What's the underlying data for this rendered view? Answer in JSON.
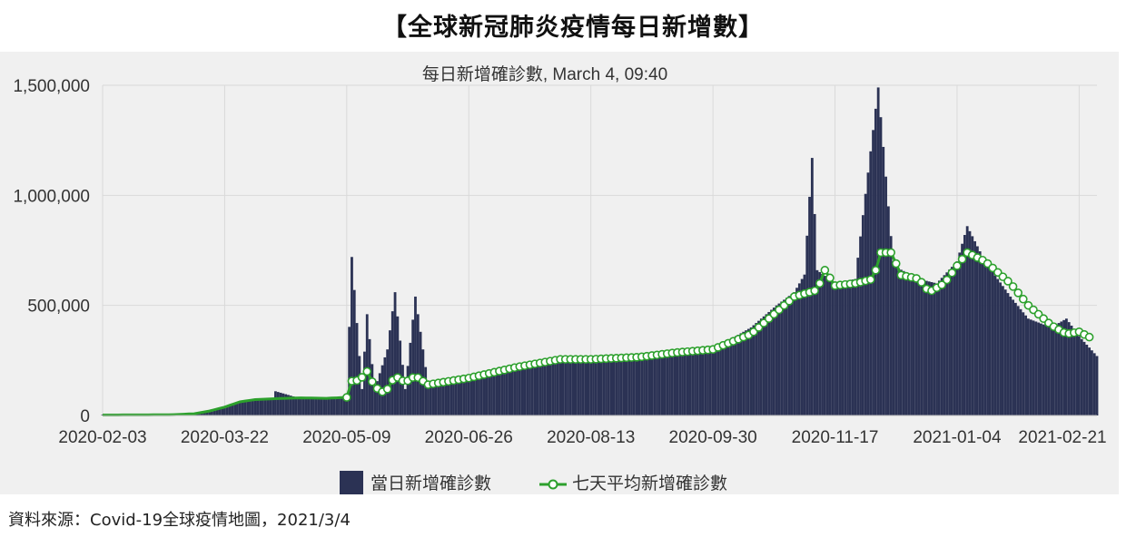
{
  "headline": "【全球新冠肺炎疫情每日新增數】",
  "source": "資料來源：Covid-19全球疫情地圖，2021/3/4",
  "chart_data": {
    "type": "bar",
    "title": "每日新增確診數, March 4, 09:40",
    "xlabel": "",
    "ylabel": "",
    "ylim": [
      0,
      1500000
    ],
    "yticks": [
      0,
      500000,
      1000000,
      1500000
    ],
    "ytick_labels": [
      "0",
      "500,000",
      "1,000,000",
      "1,500,000"
    ],
    "xticks": [
      "2020-02-03",
      "2020-03-22",
      "2020-05-09",
      "2020-06-26",
      "2020-08-13",
      "2020-09-30",
      "2020-11-17",
      "2021-01-04",
      "2021-02-21"
    ],
    "x_start": "2020-02-03",
    "x_end": "2021-02-28",
    "grid": true,
    "legend_position": "bottom",
    "colors": {
      "bar": "#2b3254",
      "line": "#2ca02c",
      "marker_fill": "#ffffff",
      "panel_bg": "#f0f0f0",
      "grid": "#d9d9d9"
    },
    "series": [
      {
        "name": "當日新增確診數",
        "type": "bar",
        "points": [
          [
            "2020-02-03",
            3000
          ],
          [
            "2020-03-01",
            2000
          ],
          [
            "2020-03-10",
            5000
          ],
          [
            "2020-03-16",
            15000
          ],
          [
            "2020-03-22",
            35000
          ],
          [
            "2020-03-28",
            60000
          ],
          [
            "2020-04-03",
            75000
          ],
          [
            "2020-04-10",
            80000
          ],
          [
            "2020-04-11",
            110000
          ],
          [
            "2020-04-20",
            80000
          ],
          [
            "2020-05-01",
            82000
          ],
          [
            "2020-05-09",
            85000
          ],
          [
            "2020-05-11",
            720000
          ],
          [
            "2020-05-15",
            120000
          ],
          [
            "2020-05-17",
            460000
          ],
          [
            "2020-05-20",
            120000
          ],
          [
            "2020-05-25",
            300000
          ],
          [
            "2020-05-28",
            560000
          ],
          [
            "2020-06-01",
            120000
          ],
          [
            "2020-06-05",
            540000
          ],
          [
            "2020-06-10",
            140000
          ],
          [
            "2020-06-26",
            170000
          ],
          [
            "2020-07-15",
            230000
          ],
          [
            "2020-08-01",
            270000
          ],
          [
            "2020-08-13",
            260000
          ],
          [
            "2020-09-01",
            270000
          ],
          [
            "2020-09-15",
            290000
          ],
          [
            "2020-09-30",
            300000
          ],
          [
            "2020-10-15",
            400000
          ],
          [
            "2020-10-25",
            500000
          ],
          [
            "2020-11-01",
            560000
          ],
          [
            "2020-11-05",
            640000
          ],
          [
            "2020-11-08",
            1170000
          ],
          [
            "2020-11-10",
            660000
          ],
          [
            "2020-11-17",
            600000
          ],
          [
            "2020-11-25",
            620000
          ],
          [
            "2020-12-04",
            1490000
          ],
          [
            "2020-12-10",
            680000
          ],
          [
            "2020-12-20",
            620000
          ],
          [
            "2020-12-27",
            600000
          ],
          [
            "2021-01-04",
            700000
          ],
          [
            "2021-01-08",
            860000
          ],
          [
            "2021-01-15",
            700000
          ],
          [
            "2021-01-25",
            540000
          ],
          [
            "2021-02-01",
            440000
          ],
          [
            "2021-02-10",
            400000
          ],
          [
            "2021-02-16",
            440000
          ],
          [
            "2021-02-21",
            360000
          ],
          [
            "2021-02-28",
            270000
          ]
        ]
      },
      {
        "name": "七天平均新增確診數",
        "type": "line",
        "points": [
          [
            "2020-02-03",
            2000
          ],
          [
            "2020-03-01",
            3000
          ],
          [
            "2020-03-10",
            8000
          ],
          [
            "2020-03-16",
            20000
          ],
          [
            "2020-03-22",
            38000
          ],
          [
            "2020-03-28",
            62000
          ],
          [
            "2020-04-03",
            72000
          ],
          [
            "2020-04-10",
            76000
          ],
          [
            "2020-04-20",
            80000
          ],
          [
            "2020-05-01",
            78000
          ],
          [
            "2020-05-09",
            82000
          ],
          [
            "2020-05-10",
            155000
          ],
          [
            "2020-05-14",
            160000
          ],
          [
            "2020-05-17",
            200000
          ],
          [
            "2020-05-20",
            130000
          ],
          [
            "2020-05-24",
            100000
          ],
          [
            "2020-05-28",
            180000
          ],
          [
            "2020-06-01",
            150000
          ],
          [
            "2020-06-05",
            180000
          ],
          [
            "2020-06-10",
            140000
          ],
          [
            "2020-06-26",
            170000
          ],
          [
            "2020-07-15",
            220000
          ],
          [
            "2020-08-01",
            255000
          ],
          [
            "2020-08-13",
            255000
          ],
          [
            "2020-09-01",
            265000
          ],
          [
            "2020-09-15",
            285000
          ],
          [
            "2020-09-30",
            300000
          ],
          [
            "2020-10-15",
            370000
          ],
          [
            "2020-10-25",
            470000
          ],
          [
            "2020-11-01",
            540000
          ],
          [
            "2020-11-10",
            570000
          ],
          [
            "2020-11-13",
            660000
          ],
          [
            "2020-11-17",
            590000
          ],
          [
            "2020-11-25",
            600000
          ],
          [
            "2020-12-02",
            620000
          ],
          [
            "2020-12-05",
            740000
          ],
          [
            "2020-12-10",
            740000
          ],
          [
            "2020-12-12",
            640000
          ],
          [
            "2020-12-20",
            620000
          ],
          [
            "2020-12-24",
            560000
          ],
          [
            "2020-12-30",
            600000
          ],
          [
            "2021-01-04",
            680000
          ],
          [
            "2021-01-08",
            740000
          ],
          [
            "2021-01-15",
            700000
          ],
          [
            "2021-01-25",
            600000
          ],
          [
            "2021-02-01",
            500000
          ],
          [
            "2021-02-10",
            410000
          ],
          [
            "2021-02-16",
            370000
          ],
          [
            "2021-02-21",
            380000
          ],
          [
            "2021-02-26",
            350000
          ]
        ]
      }
    ]
  }
}
